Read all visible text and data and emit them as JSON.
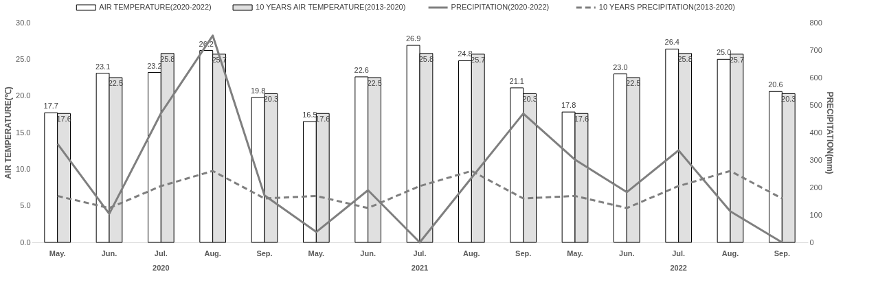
{
  "chart_data": {
    "type": "bar",
    "categories": [
      "May.",
      "Jun.",
      "Jul.",
      "Aug.",
      "Sep.",
      "May.",
      "Jun.",
      "Jul.",
      "Aug.",
      "Sep.",
      "May.",
      "Jun.",
      "Jul.",
      "Aug.",
      "Sep."
    ],
    "annotations": [
      "2020",
      "2021",
      "2022"
    ],
    "ylabel": "AIR TEMPERATURE(℃)",
    "y2label": "PRECIPITATION(mm)",
    "ylim": [
      0,
      30
    ],
    "yticks": [
      {
        "value": 0,
        "label": "0.0"
      },
      {
        "value": 5,
        "label": "5.0"
      },
      {
        "value": 10,
        "label": "10.0"
      },
      {
        "value": 15,
        "label": "15.0"
      },
      {
        "value": 20,
        "label": "20.0"
      },
      {
        "value": 25,
        "label": "25.0"
      },
      {
        "value": 30,
        "label": "30.0"
      }
    ],
    "y2lim": [
      0,
      800
    ],
    "y2ticks": [
      0,
      100,
      200,
      300,
      400,
      500,
      600,
      700,
      800
    ],
    "legend": "top",
    "grid": false,
    "series": [
      {
        "name": "AIR TEMPERATURE(2020-2022)",
        "color": "#ffffff",
        "values": [
          17.7,
          23.1,
          23.2,
          26.2,
          19.8,
          16.5,
          22.6,
          26.9,
          24.8,
          21.1,
          17.8,
          23.0,
          26.4,
          25.0,
          20.6
        ],
        "value_labels": [
          "17.7",
          "23.1",
          "23.2",
          "26.2",
          "19.8",
          "16.5",
          "22.6",
          "26.9",
          "24.8",
          "21.1",
          "17.8",
          "23.0",
          "26.4",
          "25.0",
          "20.6"
        ]
      },
      {
        "name": "10 YEARS AIR TEMPERATURE(2013-2020)",
        "color": "#e0e0e0",
        "values": [
          17.6,
          22.5,
          25.8,
          25.7,
          20.3,
          17.6,
          22.5,
          25.8,
          25.7,
          20.3,
          17.6,
          22.5,
          25.8,
          25.7,
          20.3
        ],
        "value_labels": [
          "17.6",
          "22.5",
          "25.8",
          "25.7",
          "20.3",
          "17.6",
          "22.5",
          "25.8",
          "25.7",
          "20.3",
          "17.6",
          "22.5",
          "25.8",
          "25.7",
          "20.3"
        ]
      },
      {
        "name": "PRECIPITATION(2020-2022)",
        "type": "line",
        "axis": "y2",
        "line_style": "solid",
        "color": "#7f7f7f",
        "values": [
          359,
          104,
          470,
          753,
          171,
          38,
          190,
          0,
          235,
          469,
          301,
          183,
          335,
          113,
          0
        ]
      },
      {
        "name": "10 YEARS PRECIPITATION(2013-2020)",
        "type": "line",
        "axis": "y2",
        "line_style": "dashed",
        "color": "#7f7f7f",
        "values": [
          169,
          125,
          205,
          260,
          160,
          169,
          125,
          205,
          260,
          160,
          169,
          125,
          205,
          260,
          160
        ]
      }
    ]
  }
}
